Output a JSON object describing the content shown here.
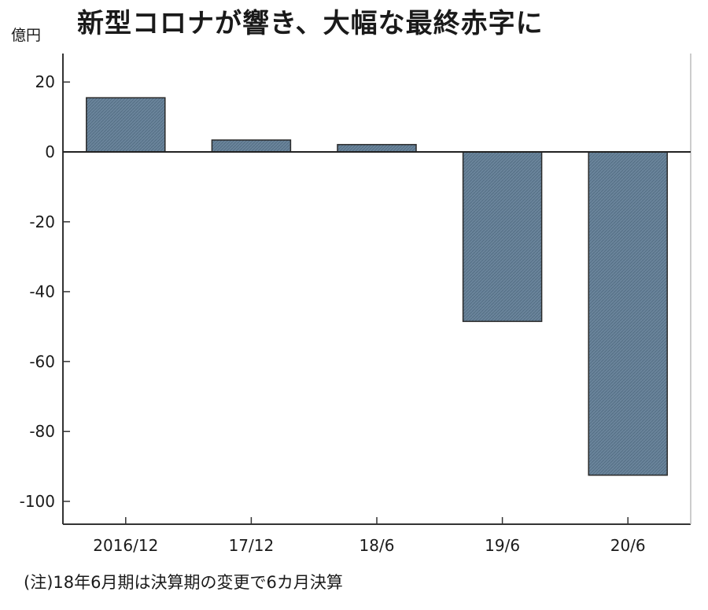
{
  "chart_data": {
    "type": "bar",
    "title": "新型コロナが響き、大幅な最終赤字に",
    "ylabel": "億円",
    "categories": [
      "2016/12",
      "17/12",
      "18/6",
      "19/6",
      "20/6"
    ],
    "values": [
      15.5,
      3.4,
      2.1,
      -48.5,
      -92.5
    ],
    "ylim": [
      -106,
      28
    ],
    "yticks": [
      20,
      0,
      -20,
      -40,
      -60,
      -80,
      -100
    ],
    "ytick_labels": [
      "20",
      "0",
      "-20",
      "-40",
      "-60",
      "-80",
      "-100"
    ],
    "grid": false,
    "bar_color": "#6a849b",
    "note": "(注)18年6月期は決算期の変更で6カ月決算"
  }
}
